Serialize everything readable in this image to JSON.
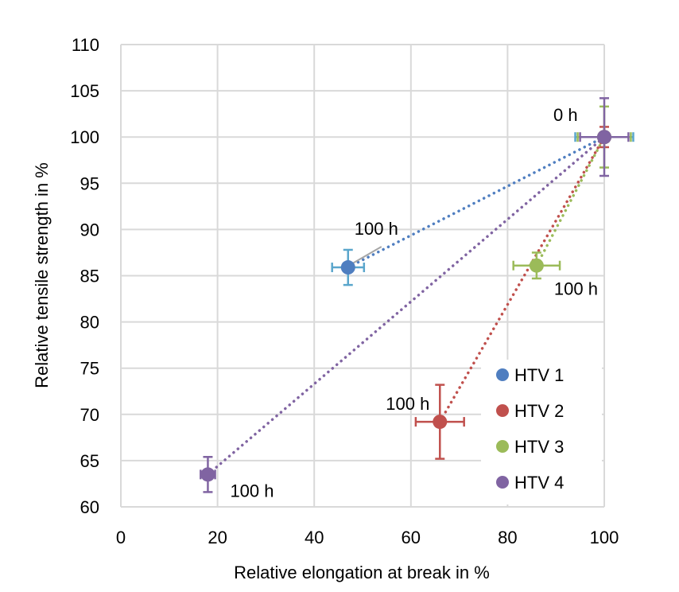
{
  "chart_data": {
    "type": "scatter",
    "title": "",
    "xlabel": "Relative elongation at break in %",
    "ylabel": "Relative tensile strength in %",
    "xlim": [
      0,
      100
    ],
    "ylim": [
      60,
      110
    ],
    "x_ticks": [
      "0",
      "20",
      "40",
      "60",
      "80",
      "100"
    ],
    "y_ticks": [
      "60",
      "65",
      "70",
      "75",
      "80",
      "85",
      "90",
      "95",
      "100",
      "105",
      "110"
    ],
    "grid": true,
    "legend_position": "bottom-right",
    "series": [
      {
        "name": "HTV 1",
        "color": "#4f7ec0",
        "error_color": "#5aa6cc",
        "points": [
          {
            "x": 100,
            "y": 100,
            "xerr": 6,
            "yerr": 0
          },
          {
            "x": 47,
            "y": 85.9,
            "xerr": 3.3,
            "yerr": 1.9
          }
        ]
      },
      {
        "name": "HTV 2",
        "color": "#c0504d",
        "error_color": "#c0504d",
        "points": [
          {
            "x": 100,
            "y": 100,
            "xerr": 0,
            "yerr": 1.1
          },
          {
            "x": 66,
            "y": 69.2,
            "xerr": 5,
            "yerr": 4
          }
        ]
      },
      {
        "name": "HTV 3",
        "color": "#9bbb59",
        "error_color": "#9bbb59",
        "points": [
          {
            "x": 100,
            "y": 100,
            "xerr": 5.5,
            "yerr": 3.3
          },
          {
            "x": 86,
            "y": 86.1,
            "xerr": 4.8,
            "yerr": 1.4
          }
        ]
      },
      {
        "name": "HTV 4",
        "color": "#8064a2",
        "error_color": "#8064a2",
        "points": [
          {
            "x": 100,
            "y": 100,
            "xerr": 5,
            "yerr": 4.2
          },
          {
            "x": 18,
            "y": 63.5,
            "xerr": 1.5,
            "yerr": 1.9
          }
        ]
      }
    ],
    "annotations": [
      {
        "text": "0 h",
        "x": 100,
        "y": 100
      },
      {
        "text": "100 h",
        "x": 47,
        "y": 85.9
      },
      {
        "text": "100 h",
        "x": 86,
        "y": 86.1
      },
      {
        "text": "100 h",
        "x": 66,
        "y": 69.2
      },
      {
        "text": "100 h",
        "x": 18,
        "y": 63.5
      }
    ]
  }
}
